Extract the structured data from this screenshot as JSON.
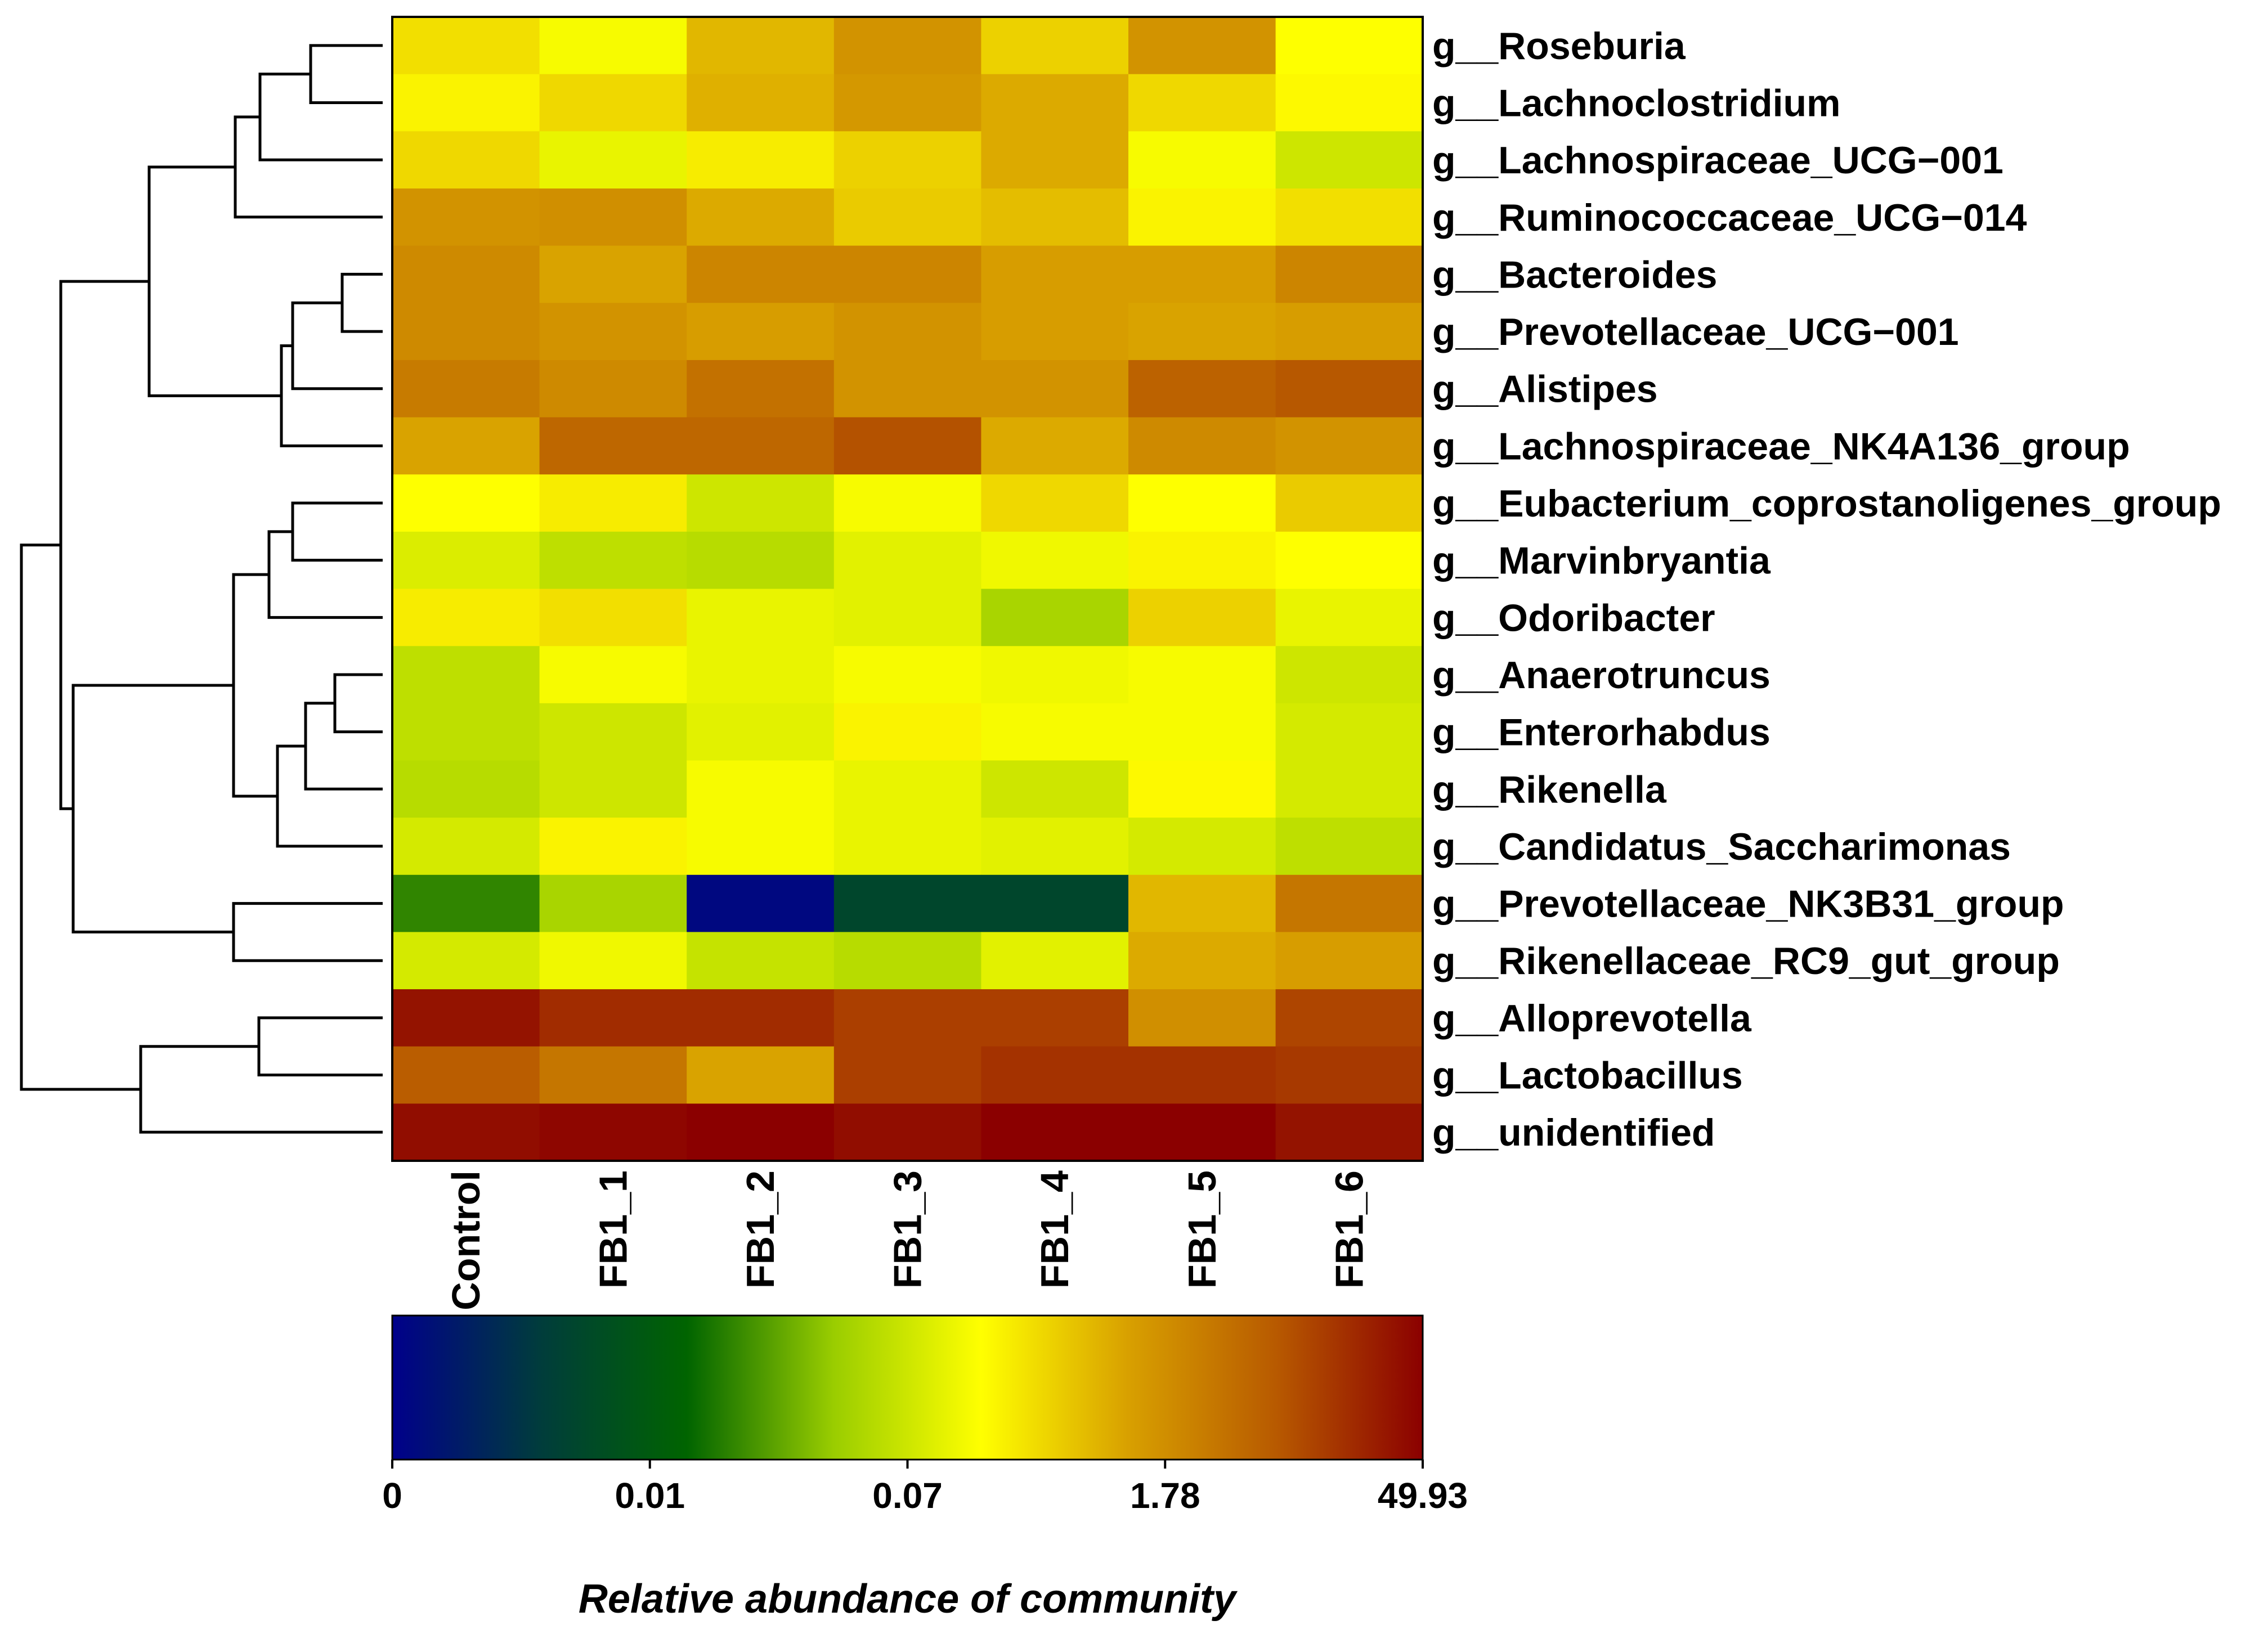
{
  "chart_data": {
    "type": "heatmap",
    "title": "",
    "xlabel": "",
    "ylabel": "",
    "columns": [
      "Control",
      "FB1_1",
      "FB1_2",
      "FB1_3",
      "FB1_4",
      "FB1_5",
      "FB1_6"
    ],
    "rows": [
      "g__Roseburia",
      "g__Lachnoclostridium",
      "g__Lachnospiraceae_UCG−001",
      "g__Ruminococcaceae_UCG−014",
      "g__Bacteroides",
      "g__Prevotellaceae_UCG−001",
      "g__Alistipes",
      "g__Lachnospiraceae_NK4A136_group",
      "g__Eubacterium_coprostanoligenes_group",
      "g__Marvinbryantia",
      "g__Odoribacter",
      "g__Anaerotruncus",
      "g__Enterorhabdus",
      "g__Rikenella",
      "g__Candidatus_Saccharimonas",
      "g__Prevotellaceae_NK3B31_group",
      "g__Rikenellaceae_RC9_gut_group",
      "g__Alloprevotella",
      "g__Lactobacillus",
      "g__unidentified"
    ],
    "color_position_note": "values are estimated positions on the color scale (0 = blue/low, 1 = dark red/high)",
    "values": [
      [
        0.62,
        0.56,
        0.68,
        0.74,
        0.64,
        0.74,
        0.57
      ],
      [
        0.59,
        0.63,
        0.69,
        0.73,
        0.7,
        0.63,
        0.58
      ],
      [
        0.63,
        0.54,
        0.6,
        0.64,
        0.7,
        0.56,
        0.5
      ],
      [
        0.74,
        0.75,
        0.7,
        0.65,
        0.67,
        0.59,
        0.62
      ],
      [
        0.76,
        0.71,
        0.77,
        0.77,
        0.72,
        0.72,
        0.77
      ],
      [
        0.76,
        0.74,
        0.72,
        0.74,
        0.72,
        0.71,
        0.72
      ],
      [
        0.79,
        0.76,
        0.81,
        0.74,
        0.74,
        0.84,
        0.86
      ],
      [
        0.71,
        0.83,
        0.83,
        0.87,
        0.7,
        0.76,
        0.74
      ],
      [
        0.57,
        0.6,
        0.5,
        0.56,
        0.63,
        0.57,
        0.65
      ],
      [
        0.52,
        0.48,
        0.47,
        0.53,
        0.55,
        0.59,
        0.57
      ],
      [
        0.6,
        0.62,
        0.54,
        0.53,
        0.45,
        0.64,
        0.54
      ],
      [
        0.48,
        0.56,
        0.54,
        0.56,
        0.55,
        0.56,
        0.5
      ],
      [
        0.48,
        0.5,
        0.53,
        0.59,
        0.56,
        0.56,
        0.51
      ],
      [
        0.47,
        0.5,
        0.56,
        0.54,
        0.5,
        0.58,
        0.51
      ],
      [
        0.51,
        0.59,
        0.56,
        0.54,
        0.53,
        0.51,
        0.48
      ],
      [
        0.33,
        0.45,
        0.02,
        0.18,
        0.18,
        0.68,
        0.8
      ],
      [
        0.51,
        0.55,
        0.49,
        0.47,
        0.53,
        0.7,
        0.72
      ],
      [
        0.97,
        0.93,
        0.93,
        0.9,
        0.9,
        0.75,
        0.89
      ],
      [
        0.85,
        0.8,
        0.71,
        0.9,
        0.92,
        0.92,
        0.91
      ],
      [
        0.98,
        0.99,
        1.0,
        0.98,
        1.0,
        1.0,
        0.97
      ]
    ],
    "legend": {
      "title": "Relative abundance of community",
      "tick_labels": [
        "0",
        "0.01",
        "0.07",
        "1.78",
        "49.93"
      ],
      "colors": [
        "#00008b",
        "#003c3c",
        "#006400",
        "#9acd00",
        "#ffff00",
        "#d8a000",
        "#b85a00",
        "#8b0000"
      ]
    },
    "dendrogram": "hierarchical clustering tree of rows, drawn to the left of the heatmap"
  }
}
